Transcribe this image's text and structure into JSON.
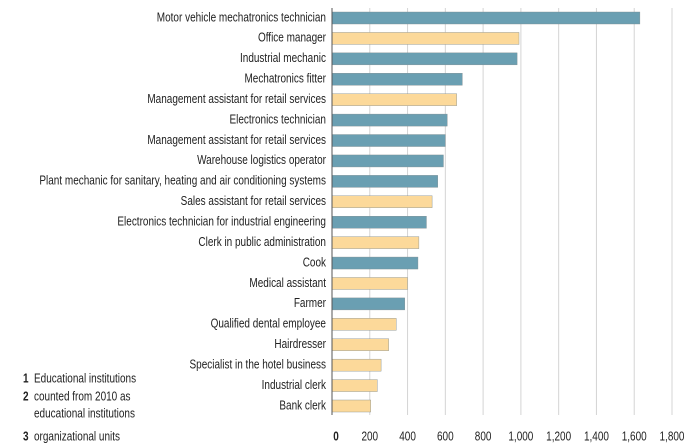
{
  "chart_data": {
    "type": "barh",
    "categories": [
      "Motor vehicle mechatronics technician",
      "Office manager",
      "Industrial mechanic",
      "Mechatronics fitter",
      "Management assistant for retail services",
      "Electronics technician",
      "Management assistant for retail services",
      "Warehouse logistics operator",
      "Plant mechanic for sanitary, heating and air conditioning systems",
      "Sales assistant for retail services",
      "Electronics technician for industrial engineering",
      "Clerk in public administration",
      "Cook",
      "Medical assistant",
      "Farmer",
      "Qualified dental employee",
      "Hairdresser",
      "Specialist in the hotel business",
      "Industrial clerk",
      "Bank clerk"
    ],
    "values": [
      1630,
      990,
      980,
      690,
      660,
      610,
      600,
      590,
      560,
      530,
      500,
      460,
      455,
      400,
      385,
      340,
      300,
      260,
      240,
      205
    ],
    "colors": [
      "#6a9fb2",
      "#fcd99a",
      "#6a9fb2",
      "#6a9fb2",
      "#fcd99a",
      "#6a9fb2",
      "#6a9fb2",
      "#6a9fb2",
      "#6a9fb2",
      "#fcd99a",
      "#6a9fb2",
      "#fcd99a",
      "#6a9fb2",
      "#fcd99a",
      "#6a9fb2",
      "#fcd99a",
      "#fcd99a",
      "#fcd99a",
      "#fcd99a",
      "#fcd99a"
    ],
    "xlim": [
      0,
      1800
    ],
    "xticks": [
      0,
      200,
      400,
      600,
      800,
      {
        "value": 1000,
        "label": "1,000"
      },
      {
        "value": 1200,
        "label": "1,200"
      },
      {
        "value": 1400,
        "label": "1,400"
      },
      {
        "value": 1600,
        "label": "1,600"
      },
      {
        "value": 1800,
        "label": "1,800"
      }
    ],
    "grid": true,
    "footnotes": [
      {
        "number": "1",
        "lines": [
          "Educational institutions"
        ]
      },
      {
        "number": "2",
        "lines": [
          "counted from 2010 as",
          "educational institutions"
        ]
      },
      {
        "number": "3",
        "lines": [
          "organizational units"
        ]
      }
    ]
  }
}
